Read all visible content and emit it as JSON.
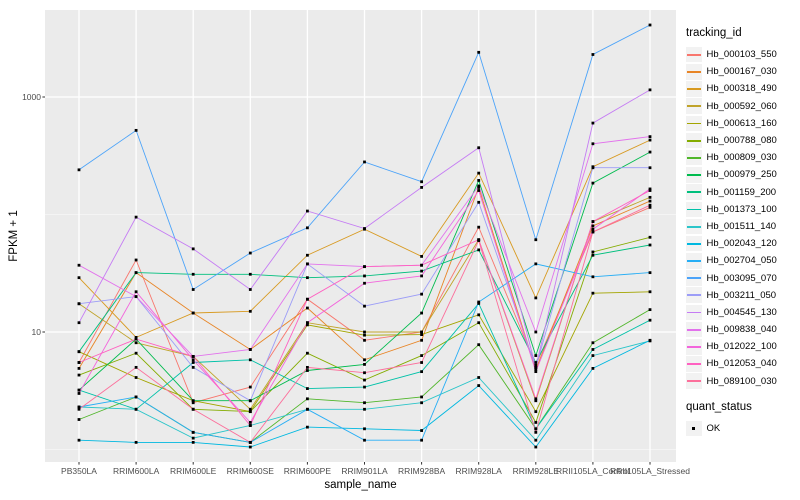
{
  "chart_data": {
    "type": "line",
    "title": "",
    "xlabel": "sample_name",
    "ylabel": "FPKM + 1",
    "y_scale": "log10",
    "y_ticks": [
      10,
      1000
    ],
    "y_minor_gridlines": [
      1,
      100
    ],
    "ylim_log10": [
      -0.11,
      3.74
    ],
    "grid": true,
    "legend_position": "right",
    "legend_title": "tracking_id",
    "legend2_title": "quant_status",
    "legend2_items": [
      {
        "label": "OK",
        "shape": "black-square"
      }
    ],
    "point_shape": "small black square (quant_status OK)",
    "categories": [
      "PB350LA",
      "RRIM600LA",
      "RRIM600LE",
      "RRIM600SE",
      "RRIM600PE",
      "RRIM901LA",
      "RRIM928BA",
      "RRIM928LA",
      "RRIM928LE",
      "RRII105LA_Control",
      "RRII105LA_Stressed"
    ],
    "series": [
      {
        "name": "Hb_000103_550",
        "color": "#F8766D",
        "values": [
          5.5,
          41,
          2.5,
          3.4,
          19,
          8.5,
          10,
          78,
          5.2,
          71,
          115
        ]
      },
      {
        "name": "Hb_000167_030",
        "color": "#E88526",
        "values": [
          4.9,
          32,
          14.5,
          7.1,
          16,
          5.8,
          8.5,
          170,
          4.8,
          80,
          130
        ]
      },
      {
        "name": "Hb_000318_490",
        "color": "#D89A21",
        "values": [
          29,
          9,
          14.5,
          15,
          45,
          75,
          44,
          225,
          19.5,
          255,
          430
        ]
      },
      {
        "name": "Hb_000592_060",
        "color": "#C0A32A",
        "values": [
          17.4,
          8.1,
          6.2,
          2.2,
          12,
          10,
          10,
          61,
          2.6,
          87,
          140
        ]
      },
      {
        "name": "Hb_000613_160",
        "color": "#A3A500",
        "values": [
          6.8,
          4.1,
          2.6,
          2.1,
          11.5,
          9.4,
          9.5,
          14,
          2.1,
          21.4,
          22
        ]
      },
      {
        "name": "Hb_000788_080",
        "color": "#84AC00",
        "values": [
          4.3,
          6.6,
          2.2,
          2.1,
          6.6,
          3.9,
          6.3,
          12,
          1.7,
          48,
          64
        ]
      },
      {
        "name": "Hb_000809_030",
        "color": "#50B62A",
        "values": [
          1.8,
          2.8,
          1.4,
          1.15,
          2.7,
          2.5,
          2.8,
          7.8,
          1.5,
          8.1,
          15.5
        ]
      },
      {
        "name": "Hb_000979_250",
        "color": "#00BB4E",
        "values": [
          3.2,
          8.7,
          2.6,
          2.6,
          4.7,
          5.3,
          14.5,
          195,
          6.3,
          185,
          340
        ]
      },
      {
        "name": "Hb_001159_200",
        "color": "#00BF7D",
        "values": [
          6.8,
          32,
          31,
          31,
          29,
          30,
          33,
          50,
          5.5,
          45,
          55
        ]
      },
      {
        "name": "Hb_001373_100",
        "color": "#00C1A8",
        "values": [
          3.2,
          2.2,
          5.5,
          5.8,
          3.3,
          3.4,
          4.6,
          17.5,
          1.5,
          7.1,
          12.6
        ]
      },
      {
        "name": "Hb_001511_140",
        "color": "#2CC5C9",
        "values": [
          2.3,
          2.2,
          1.25,
          1.6,
          2.2,
          2.2,
          2.5,
          4.1,
          1.2,
          6.3,
          8.4
        ]
      },
      {
        "name": "Hb_002043_120",
        "color": "#00B8E0",
        "values": [
          1.2,
          1.15,
          1.15,
          1.05,
          1.55,
          1.5,
          1.45,
          3.5,
          1.05,
          4.9,
          8.5
        ]
      },
      {
        "name": "Hb_002704_050",
        "color": "#27AEF5",
        "values": [
          2.3,
          2.8,
          1.4,
          1.15,
          2.2,
          1.2,
          1.2,
          18,
          38,
          29.5,
          32
        ]
      },
      {
        "name": "Hb_003095_070",
        "color": "#4BA3F9",
        "values": [
          240,
          520,
          23,
          47,
          77,
          280,
          190,
          2400,
          61,
          2300,
          4100
        ]
      },
      {
        "name": "Hb_003211_050",
        "color": "#9C9DF7",
        "values": [
          17.4,
          20,
          5.0,
          2.6,
          38,
          16.6,
          21,
          127,
          5.0,
          250,
          250
        ]
      },
      {
        "name": "Hb_004545_130",
        "color": "#C57CF4",
        "values": [
          12,
          95,
          51,
          23,
          107,
          76,
          170,
          370,
          5.0,
          600,
          1150
        ]
      },
      {
        "name": "Hb_009838_040",
        "color": "#E272EC",
        "values": [
          37,
          20,
          6.2,
          7.1,
          38,
          36,
          37,
          175,
          10,
          400,
          460
        ]
      },
      {
        "name": "Hb_012022_100",
        "color": "#F365DC",
        "values": [
          3.0,
          22,
          5.8,
          1.7,
          12,
          26,
          30,
          160,
          4.6,
          75,
          165
        ]
      },
      {
        "name": "Hb_012053_040",
        "color": "#FF61C1",
        "values": [
          5.5,
          8.7,
          6.2,
          1.6,
          19,
          36,
          37,
          61,
          2.7,
          87,
          160
        ]
      },
      {
        "name": "Hb_089100_030",
        "color": "#FC6F9B",
        "values": [
          2.2,
          5.0,
          2.2,
          1.15,
          5.0,
          4.5,
          5.5,
          60,
          1.4,
          71,
          120
        ]
      }
    ],
    "layout": {
      "panel_bg": "#EBEBEB",
      "grid_color": "#FFFFFF",
      "tick_text_color": "#4d4d4d",
      "point_color": "#000000"
    }
  }
}
